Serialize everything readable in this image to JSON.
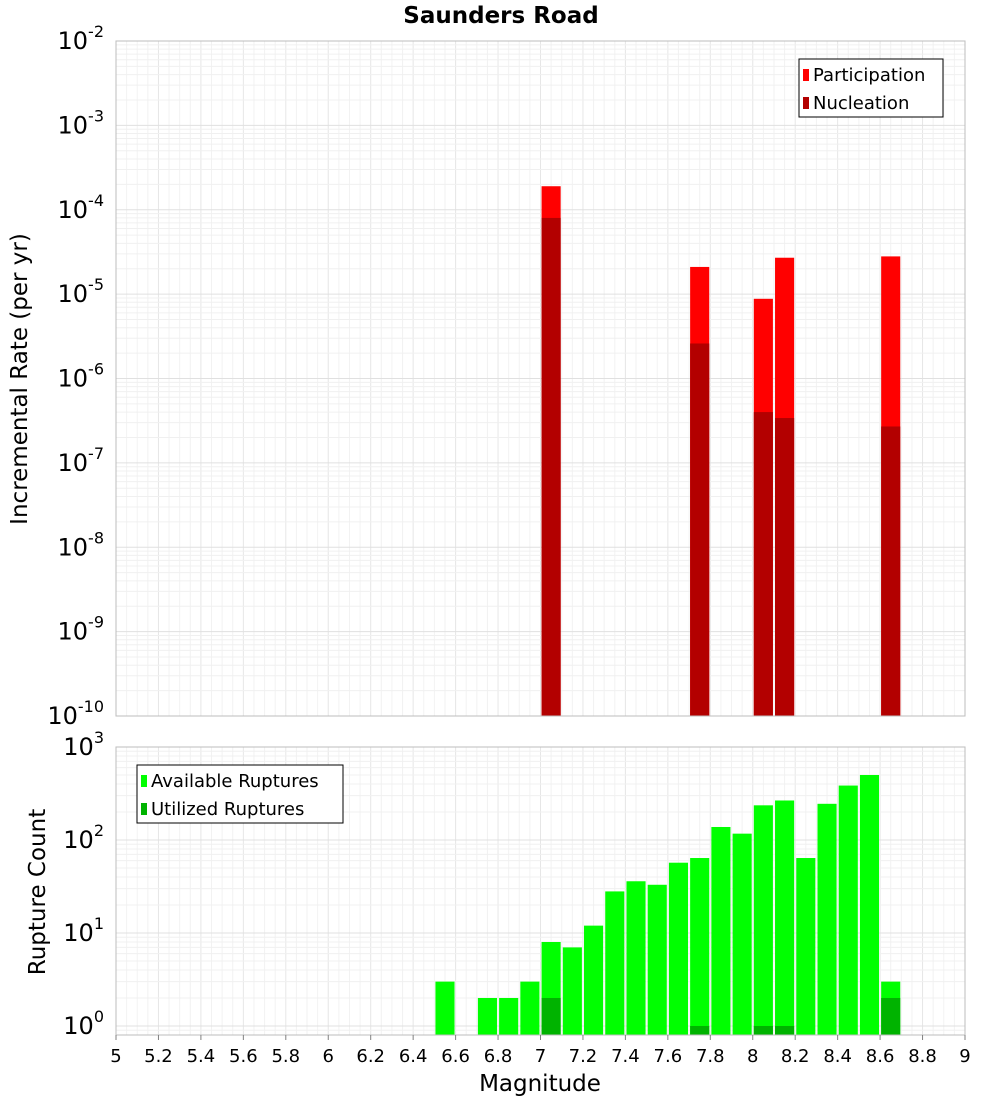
{
  "chart_data": [
    {
      "type": "bar",
      "title": "Saunders Road",
      "xlabel": "",
      "ylabel": "Incremental Rate (per yr)",
      "yscale": "log",
      "xlim": [
        5,
        9
      ],
      "ylim": [
        1e-10,
        0.01
      ],
      "ytick_exponents": [
        -10,
        -9,
        -8,
        -7,
        -6,
        -5,
        -4,
        -3,
        -2
      ],
      "grid": true,
      "legend_position": "top-right",
      "bar_width": 0.09,
      "series": [
        {
          "name": "Participation",
          "color": "#ff0000",
          "x": [
            7.05,
            7.75,
            8.05,
            8.15,
            8.65
          ],
          "values": [
            0.00019,
            2.1e-05,
            8.8e-06,
            2.7e-05,
            2.8e-05
          ]
        },
        {
          "name": "Nucleation",
          "color": "#b30000",
          "x": [
            7.05,
            7.75,
            8.05,
            8.15,
            8.65
          ],
          "values": [
            8e-05,
            2.6e-06,
            4e-07,
            3.4e-07,
            2.7e-07
          ]
        }
      ]
    },
    {
      "type": "bar",
      "title": "",
      "xlabel": "Magnitude",
      "ylabel": "Rupture Count",
      "yscale": "log",
      "xlim": [
        5,
        9
      ],
      "ylim": [
        0.8,
        1000
      ],
      "ytick_exponents": [
        0,
        1,
        2,
        3
      ],
      "xticks": [
        "5",
        "5.2",
        "5.4",
        "5.6",
        "5.8",
        "6",
        "6.2",
        "6.4",
        "6.6",
        "6.8",
        "7",
        "7.2",
        "7.4",
        "7.6",
        "7.8",
        "8",
        "8.2",
        "8.4",
        "8.6",
        "8.8",
        "9"
      ],
      "grid": true,
      "legend_position": "top-left",
      "bar_width": 0.09,
      "series": [
        {
          "name": "Available Ruptures",
          "color": "#00ff00",
          "x": [
            6.55,
            6.75,
            6.85,
            6.95,
            7.05,
            7.15,
            7.25,
            7.35,
            7.45,
            7.55,
            7.65,
            7.75,
            7.85,
            7.95,
            8.05,
            8.15,
            8.25,
            8.35,
            8.45,
            8.55,
            8.65
          ],
          "values": [
            3,
            2,
            2,
            3,
            8,
            7,
            12,
            28,
            36,
            33,
            57,
            64,
            138,
            117,
            236,
            266,
            64,
            245,
            385,
            500,
            3
          ]
        },
        {
          "name": "Utilized Ruptures",
          "color": "#00b300",
          "x": [
            7.05,
            7.75,
            8.05,
            8.15,
            8.65
          ],
          "values": [
            2,
            1,
            1,
            1,
            2
          ]
        }
      ]
    }
  ]
}
